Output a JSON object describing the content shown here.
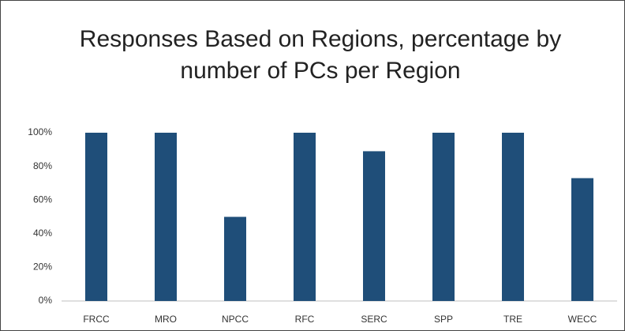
{
  "chart_data": {
    "type": "bar",
    "title": "Responses Based on Regions, percentage by number of PCs per Region",
    "categories": [
      "FRCC",
      "MRO",
      "NPCC",
      "RFC",
      "SERC",
      "SPP",
      "TRE",
      "WECC"
    ],
    "values": [
      100,
      100,
      50,
      100,
      89,
      100,
      100,
      73
    ],
    "color": "#1f4e79",
    "ylim": [
      0,
      100
    ],
    "yticks": [
      {
        "value": 0,
        "label": "0%"
      },
      {
        "value": 20,
        "label": "20%"
      },
      {
        "value": 40,
        "label": "40%"
      },
      {
        "value": 60,
        "label": "60%"
      },
      {
        "value": 80,
        "label": "80%"
      },
      {
        "value": 100,
        "label": "100%"
      }
    ],
    "grid": false
  }
}
